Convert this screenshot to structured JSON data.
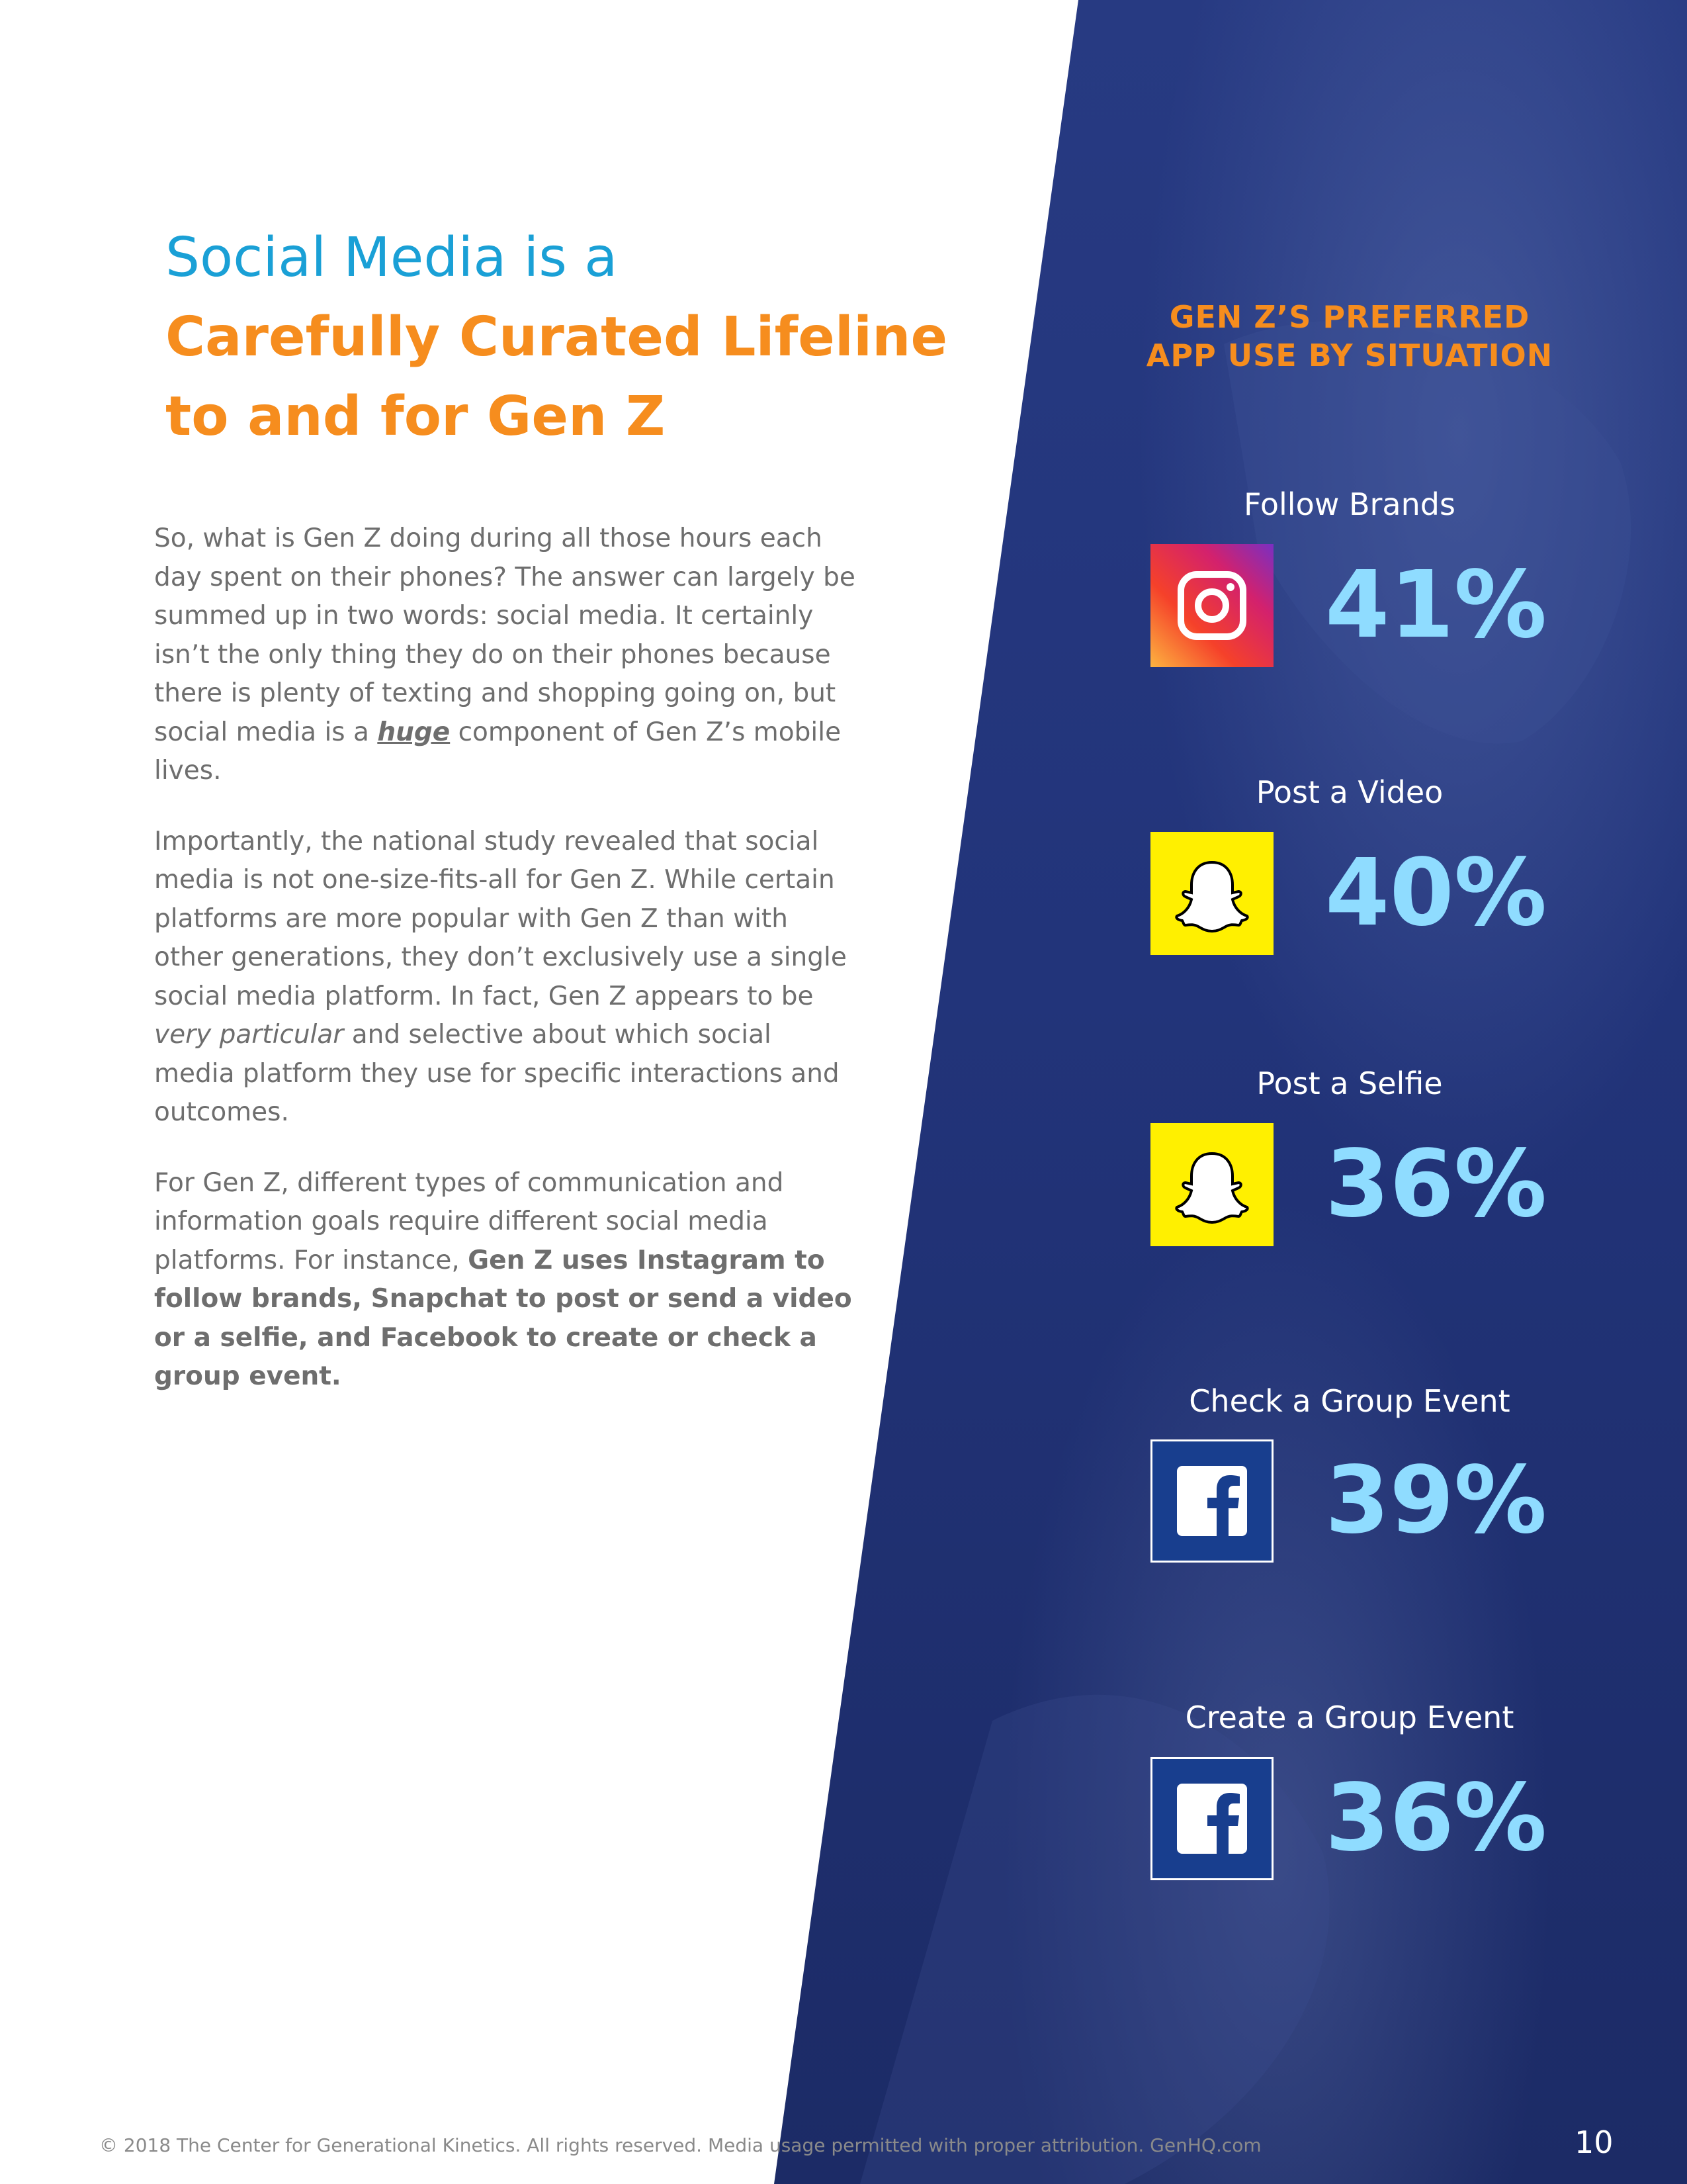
{
  "heading": {
    "line1": "Social Media is a",
    "line2": "Carefully Curated Lifeline",
    "line3": "to and for Gen Z"
  },
  "body": {
    "p1_a": "So, what is Gen Z doing during all those hours each day spent on their phones? The answer can largely be summed up in two words: social media. It certainly isn’t the only thing they do on their phones because there is plenty of texting and shopping going on, but social media is a ",
    "p1_em": "huge",
    "p1_b": " component of Gen Z’s mobile lives.",
    "p2_a": "Importantly, the national study revealed that social media is not one-size-fits-all for Gen Z. While certain platforms are more popular with Gen Z than with other generations, they don’t exclusively use a single social media platform. In fact, Gen Z appears to be ",
    "p2_em": "very particular",
    "p2_b": " and selective about which social media platform they use for specific interactions and outcomes.",
    "p3_a": "For Gen Z, different types of communication and information goals require different social media platforms. For instance, ",
    "p3_strong": "Gen Z uses Instagram to follow brands, Snapchat to post or send a video or a selfie, and Facebook to create or check a group event."
  },
  "panel": {
    "title_line1": "GEN Z’S PREFERRED",
    "title_line2": "APP USE BY SITUATION",
    "stats": [
      {
        "label": "Follow Brands",
        "app": "Instagram",
        "icon": "instagram-icon",
        "value": "41%"
      },
      {
        "label": "Post a Video",
        "app": "Snapchat",
        "icon": "snapchat-icon",
        "value": "40%"
      },
      {
        "label": "Post a Selfie",
        "app": "Snapchat",
        "icon": "snapchat-icon",
        "value": "36%"
      },
      {
        "label": "Check a Group Event",
        "app": "Facebook",
        "icon": "facebook-icon",
        "value": "39%"
      },
      {
        "label": "Create a Group Event",
        "app": "Facebook",
        "icon": "facebook-icon",
        "value": "36%"
      }
    ]
  },
  "footer": {
    "text": "© 2018 The Center for Generational Kinetics. All rights reserved. Media usage permitted with proper attribution. GenHQ.com",
    "page_number": "10"
  },
  "colors": {
    "heading_blue": "#1aa0d6",
    "accent_orange": "#f68d1e",
    "panel_navy": "#1e2e6b",
    "stat_blue": "#8fdcff",
    "snapchat_yellow": "#fffc00",
    "facebook_blue": "#183e8e"
  }
}
